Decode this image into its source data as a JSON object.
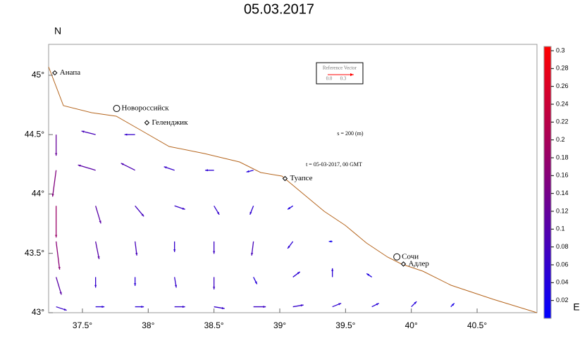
{
  "chart_data": {
    "type": "vector-map",
    "title": "05.03.2017",
    "x_label": "E",
    "y_label": "N",
    "xlim": [
      37.243,
      40.955
    ],
    "ylim": [
      43,
      45.26
    ],
    "xticks": [
      {
        "value": 37.5,
        "label": "37.5°"
      },
      {
        "value": 38,
        "label": "38°"
      },
      {
        "value": 38.5,
        "label": "38.5°"
      },
      {
        "value": 39,
        "label": "39°"
      },
      {
        "value": 39.5,
        "label": "39.5°"
      },
      {
        "value": 40,
        "label": "40°"
      },
      {
        "value": 40.5,
        "label": "40.5°"
      }
    ],
    "yticks": [
      {
        "value": 43,
        "label": "43°"
      },
      {
        "value": 43.5,
        "label": "43.5°"
      },
      {
        "value": 44,
        "label": "44°"
      },
      {
        "value": 44.5,
        "label": "44.5°"
      },
      {
        "value": 45,
        "label": "45°"
      }
    ],
    "annotations": [
      "s = 200 (m)",
      "t = 05-03-2017, 00 GMT"
    ],
    "reference_vector": {
      "title": "Reference Vector",
      "start": "0.0",
      "end": "0.3",
      "color": "#ff0000"
    },
    "cities": [
      {
        "name": "Анапа",
        "lon": 37.29,
        "lat": 45.02,
        "marker": "diamond"
      },
      {
        "name": "Новороссийск",
        "lon": 37.76,
        "lat": 44.72,
        "marker": "circle"
      },
      {
        "name": "Геленджик",
        "lon": 37.99,
        "lat": 44.6,
        "marker": "diamond"
      },
      {
        "name": "Туапсе",
        "lon": 39.04,
        "lat": 44.13,
        "marker": "diamond"
      },
      {
        "name": "Сочи",
        "lon": 39.89,
        "lat": 43.47,
        "marker": "circle"
      },
      {
        "name": "Адлер",
        "lon": 39.94,
        "lat": 43.41,
        "marker": "diamond"
      }
    ],
    "colorbar": {
      "lim": [
        0,
        0.3
      ],
      "colormap": [
        "#0000ff",
        "#ff0000"
      ],
      "ticks": [
        0.02,
        0.04,
        0.06,
        0.08,
        0.1,
        0.12,
        0.14,
        0.16,
        0.18,
        0.2,
        0.22,
        0.24,
        0.26,
        0.28,
        0.3
      ]
    },
    "vectors": {
      "lon": [
        37.3,
        37.6,
        37.9,
        37.3,
        37.6,
        37.9,
        38.2,
        38.5,
        38.8,
        37.3,
        37.6,
        37.9,
        38.2,
        38.5,
        38.8,
        39.1,
        37.3,
        37.6,
        37.9,
        38.2,
        38.5,
        38.8,
        39.1,
        39.4,
        37.3,
        37.6,
        37.9,
        38.2,
        38.5,
        38.8,
        39.1,
        39.4,
        39.7,
        37.3,
        37.6,
        37.9,
        38.2,
        38.5,
        38.8,
        39.1,
        39.4,
        39.7,
        40.0,
        40.3
      ],
      "lat": [
        44.5,
        44.5,
        44.5,
        44.2,
        44.2,
        44.2,
        44.2,
        44.2,
        44.2,
        43.9,
        43.9,
        43.9,
        43.9,
        43.9,
        43.9,
        43.9,
        43.6,
        43.6,
        43.6,
        43.6,
        43.6,
        43.6,
        43.6,
        43.6,
        43.3,
        43.3,
        43.3,
        43.3,
        43.3,
        43.3,
        43.3,
        43.3,
        43.3,
        43.05,
        43.05,
        43.05,
        43.05,
        43.05,
        43.05,
        43.05,
        43.05,
        43.05,
        43.05,
        43.05
      ],
      "u": [
        0,
        -0.08,
        -0.06,
        -0.02,
        -0.1,
        -0.08,
        -0.06,
        -0.05,
        -0.04,
        0,
        0.03,
        0.05,
        0.06,
        0.03,
        -0.02,
        -0.03,
        0.02,
        0.02,
        0.01,
        0,
        0,
        -0.01,
        -0.03,
        -0.02,
        0.03,
        0,
        0,
        0.01,
        0,
        0.02,
        0.04,
        0,
        -0.03,
        0.06,
        0.05,
        0.05,
        0.06,
        0.06,
        0.07,
        0.06,
        0.05,
        0.04,
        0.03,
        0.02
      ],
      "v": [
        -0.12,
        0.02,
        0,
        -0.15,
        0.03,
        0.04,
        0.02,
        0,
        -0.01,
        -0.18,
        -0.1,
        -0.06,
        -0.02,
        -0.05,
        -0.05,
        -0.02,
        -0.16,
        -0.1,
        -0.08,
        -0.06,
        -0.07,
        -0.08,
        -0.04,
        0,
        -0.1,
        -0.06,
        -0.05,
        -0.06,
        -0.07,
        -0.04,
        0.03,
        0.05,
        0.02,
        -0.02,
        0,
        0,
        0,
        -0.01,
        0,
        0.01,
        0.02,
        0.02,
        0.03,
        0.02
      ]
    }
  }
}
